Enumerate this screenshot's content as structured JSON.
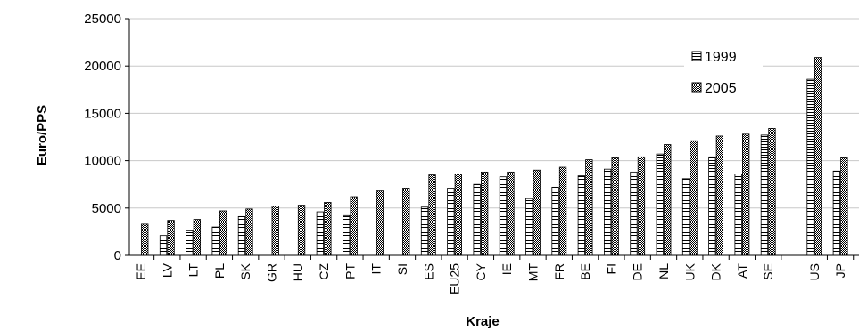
{
  "chart_data": {
    "type": "bar",
    "title": "",
    "xlabel": "Kraje",
    "ylabel": "Euro/PPS",
    "ylim": [
      0,
      25000
    ],
    "yticks": [
      0,
      5000,
      10000,
      15000,
      20000,
      25000
    ],
    "grid": true,
    "legend_position": "top-right",
    "categories": [
      "EE",
      "LV",
      "LT",
      "PL",
      "SK",
      "GR",
      "HU",
      "CZ",
      "PT",
      "IT",
      "SI",
      "ES",
      "EU25",
      "CY",
      "IE",
      "MT",
      "FR",
      "BE",
      "FI",
      "DE",
      "NL",
      "UK",
      "DK",
      "AT",
      "SE",
      "US",
      "JP"
    ],
    "series": [
      {
        "name": "1999",
        "values": [
          null,
          2100,
          2600,
          3000,
          4100,
          null,
          null,
          4600,
          4200,
          null,
          null,
          5100,
          7100,
          7500,
          8300,
          6000,
          7200,
          8400,
          9100,
          8800,
          10700,
          8100,
          10400,
          8600,
          12700,
          18600,
          8900
        ]
      },
      {
        "name": "2005",
        "values": [
          3300,
          3700,
          3800,
          4700,
          4900,
          5200,
          5300,
          5600,
          6200,
          6800,
          7100,
          8500,
          8600,
          8800,
          8800,
          9000,
          9300,
          10100,
          10300,
          10400,
          11700,
          12100,
          12600,
          12800,
          13400,
          20900,
          10300
        ]
      }
    ]
  }
}
